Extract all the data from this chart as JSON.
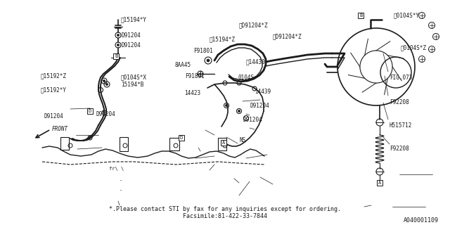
{
  "bg_color": "#ffffff",
  "line_color": "#1a1a1a",
  "text_color": "#1a1a1a",
  "footer_note": "*.Please contact STI by fax for any inquiries except for ordering.",
  "footer_fax": "Facsimile:81-422-33-7844",
  "footer_ref": "A040001109",
  "fig_size": [
    6.4,
    3.2
  ],
  "dpi": 100
}
